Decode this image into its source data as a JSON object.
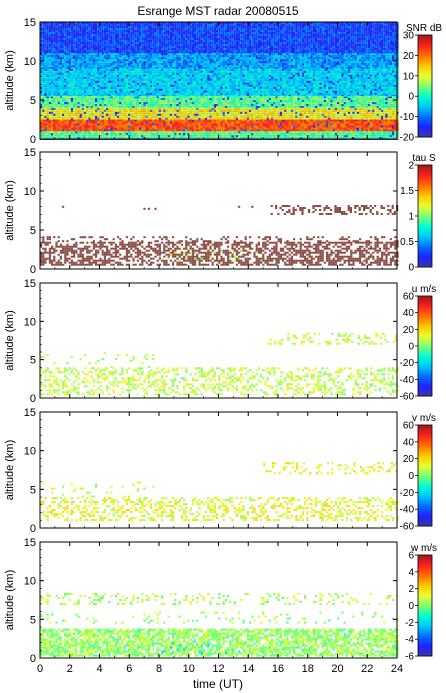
{
  "chart_data": {
    "type": "heatmap",
    "title": "Esrange MST radar 20080515",
    "xlabel": "time (UT)",
    "x_range": [
      0,
      24
    ],
    "x_ticks": [
      0,
      2,
      4,
      6,
      8,
      10,
      12,
      14,
      16,
      18,
      20,
      22,
      24
    ],
    "panels": [
      {
        "ylabel": "altitude (km)",
        "ylim": [
          0,
          15
        ],
        "y_ticks": [
          0,
          5,
          10,
          15
        ],
        "colorbar_label": "SNR dB",
        "colorbar_range": [
          -20,
          30
        ],
        "colorbar_ticks": [
          -20,
          -10,
          0,
          10,
          20,
          30
        ],
        "layers": [
          {
            "alt": [
              0,
              15
            ],
            "t": [
              0,
              24
            ],
            "value": -13,
            "density": 1.0
          },
          {
            "alt": [
              9,
              11
            ],
            "t": [
              0,
              24
            ],
            "value": -6,
            "density": 0.8
          },
          {
            "alt": [
              5.5,
              9
            ],
            "t": [
              0,
              24
            ],
            "value": -3,
            "density": 0.9
          },
          {
            "alt": [
              4,
              5.5
            ],
            "t": [
              0,
              24
            ],
            "value": 4,
            "density": 0.9
          },
          {
            "alt": [
              2.5,
              4
            ],
            "t": [
              0,
              24
            ],
            "value": 12,
            "density": 0.9
          },
          {
            "alt": [
              1,
              2.5
            ],
            "t": [
              0,
              24
            ],
            "value": 22,
            "density": 0.95
          },
          {
            "alt": [
              0,
              1
            ],
            "t": [
              0,
              24
            ],
            "value": 4,
            "density": 0.95
          }
        ]
      },
      {
        "ylabel": "altitude (km)",
        "ylim": [
          0,
          15
        ],
        "y_ticks": [
          0,
          5,
          10,
          15
        ],
        "colorbar_label": "tau S",
        "colorbar_range": [
          0,
          2
        ],
        "colorbar_ticks": [
          0,
          0.5,
          1,
          1.5,
          2
        ],
        "layers": [
          {
            "alt": [
              0.5,
              3.5
            ],
            "t": [
              0,
              24
            ],
            "value": 2,
            "density": 0.6
          },
          {
            "alt": [
              3.5,
              4.2
            ],
            "t": [
              0,
              24
            ],
            "value": 2,
            "density": 0.25
          },
          {
            "alt": [
              7,
              8.2
            ],
            "t": [
              15.5,
              24
            ],
            "value": 2,
            "density": 0.4
          },
          {
            "alt": [
              7.7,
              8.1
            ],
            "t": [
              0,
              15.5
            ],
            "value": 2,
            "density": 0.05
          },
          {
            "alt": [
              1,
              2.5
            ],
            "t": [
              8,
              15
            ],
            "value": 1.1,
            "density": 0.08
          }
        ]
      },
      {
        "ylabel": "altitude (km)",
        "ylim": [
          0,
          15
        ],
        "y_ticks": [
          0,
          5,
          10,
          15
        ],
        "colorbar_label": "u m/s",
        "colorbar_range": [
          -60,
          60
        ],
        "colorbar_ticks": [
          -60,
          -40,
          -20,
          0,
          20,
          40,
          60
        ],
        "layers": [
          {
            "alt": [
              0.5,
              4
            ],
            "t": [
              0,
              24
            ],
            "value": 8,
            "density": 0.35
          },
          {
            "alt": [
              7,
              8.5
            ],
            "t": [
              15,
              24
            ],
            "value": 10,
            "density": 0.25
          },
          {
            "alt": [
              4,
              6
            ],
            "t": [
              0,
              8
            ],
            "value": 6,
            "density": 0.06
          }
        ]
      },
      {
        "ylabel": "altitude (km)",
        "ylim": [
          0,
          15
        ],
        "y_ticks": [
          0,
          5,
          10,
          15
        ],
        "colorbar_label": "v m/s",
        "colorbar_range": [
          -60,
          60
        ],
        "colorbar_ticks": [
          -60,
          -40,
          -20,
          0,
          20,
          40,
          60
        ],
        "layers": [
          {
            "alt": [
              1,
              4
            ],
            "t": [
              0,
              24
            ],
            "value": 12,
            "density": 0.35
          },
          {
            "alt": [
              7,
              8.5
            ],
            "t": [
              15,
              24
            ],
            "value": 14,
            "density": 0.25
          },
          {
            "alt": [
              4,
              6
            ],
            "t": [
              0,
              8
            ],
            "value": 10,
            "density": 0.06
          }
        ]
      },
      {
        "ylabel": "altitude (km)",
        "ylim": [
          0,
          15
        ],
        "y_ticks": [
          0,
          5,
          10,
          15
        ],
        "colorbar_label": "w m/s",
        "colorbar_range": [
          -6,
          6
        ],
        "colorbar_ticks": [
          -6,
          -4,
          -2,
          0,
          2,
          4,
          6
        ],
        "layers": [
          {
            "alt": [
              0.3,
              3.8
            ],
            "t": [
              0,
              24
            ],
            "value": 0.3,
            "density": 0.75
          },
          {
            "alt": [
              0.5,
              2
            ],
            "t": [
              8,
              14
            ],
            "value": -1.5,
            "density": 0.1
          },
          {
            "alt": [
              7,
              8.4
            ],
            "t": [
              0,
              24
            ],
            "value": 0.5,
            "density": 0.2
          },
          {
            "alt": [
              4.5,
              6
            ],
            "t": [
              0,
              24
            ],
            "value": 0.4,
            "density": 0.08
          }
        ]
      }
    ]
  },
  "colors": {
    "colormap": [
      "#3a3aa8",
      "#2020ff",
      "#0070ff",
      "#00c8ff",
      "#00ffd0",
      "#7fff70",
      "#e8ff30",
      "#ffc800",
      "#ff7000",
      "#ff2020",
      "#a01a1a"
    ],
    "tau_color": "#8b4c45",
    "frame": "#000000"
  }
}
